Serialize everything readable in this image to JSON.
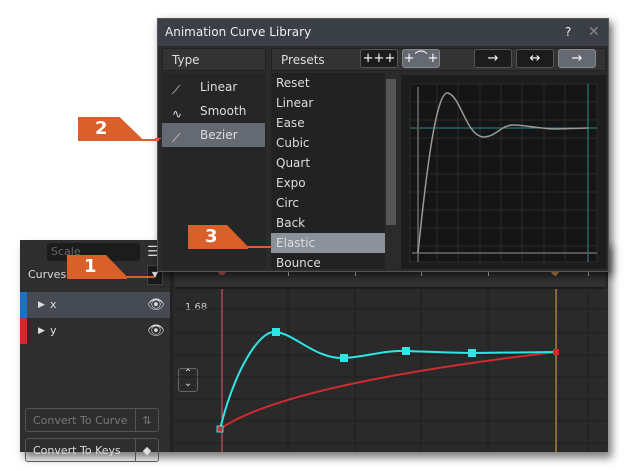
{
  "dialog": {
    "title": "Animation Curve Library",
    "help_icon": "question-circle-icon",
    "close_icon": "close-icon",
    "type_header": "Type",
    "presets_header": "Presets",
    "types": [
      {
        "label": "Linear",
        "icon": "linear-curve-icon"
      },
      {
        "label": "Smooth",
        "icon": "smooth-curve-icon"
      },
      {
        "label": "Bezier",
        "icon": "bezier-curve-icon",
        "selected": true
      }
    ],
    "presets": [
      "Reset",
      "Linear",
      "Ease",
      "Cubic",
      "Quart",
      "Expo",
      "Circ",
      "Back",
      "Elastic",
      "Bounce"
    ],
    "selected_preset": "Elastic",
    "toolbar": [
      {
        "icon": "keys-flat-icon",
        "glyph": "+++"
      },
      {
        "icon": "keys-curve-icon",
        "glyph": "+⌒+",
        "active": true
      },
      {
        "icon": "arrow-right-icon",
        "glyph": "→"
      },
      {
        "icon": "arrow-both-icon",
        "glyph": "↔"
      },
      {
        "icon": "arrow-right-icon",
        "glyph": "→",
        "active": true
      }
    ]
  },
  "editor": {
    "scale_placeholder": "Scale",
    "mode": "Curves",
    "tracks": [
      {
        "label": "x",
        "color": "#1e6fc8",
        "selected": true
      },
      {
        "label": "y",
        "color": "#d02a2f"
      }
    ],
    "value_label": "1.68",
    "convert_curve": "Convert To Curve",
    "convert_keys": "Convert To Keys"
  },
  "markers": [
    "1",
    "2",
    "3"
  ],
  "colors": {
    "accent": "#d9602a",
    "curve_x": "#2ee6e6",
    "curve_y": "#d02a2f"
  }
}
